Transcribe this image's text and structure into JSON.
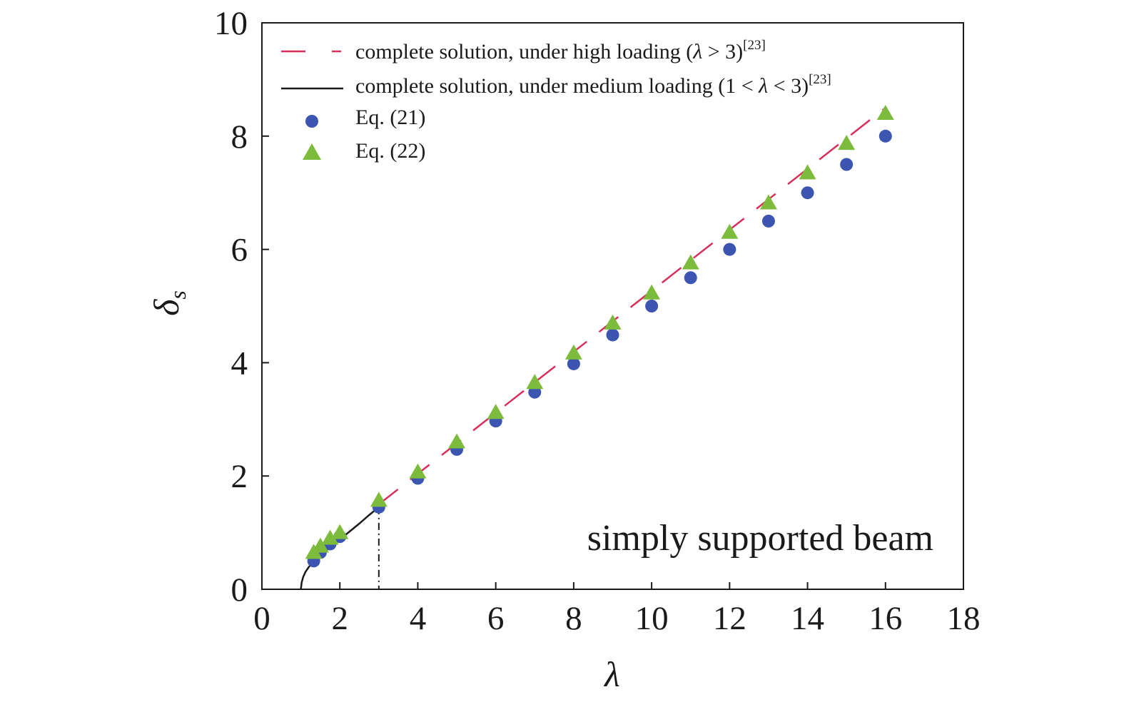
{
  "chart_data": {
    "type": "line",
    "xlabel": "λ",
    "ylabel_main": "δ",
    "ylabel_sub": "s",
    "xlim": [
      0,
      18
    ],
    "ylim": [
      0,
      10
    ],
    "xticks": [
      0,
      2,
      4,
      6,
      8,
      10,
      12,
      14,
      16,
      18
    ],
    "yticks": [
      0,
      2,
      4,
      6,
      8,
      10
    ],
    "grid": false,
    "legend_position": "top-left",
    "annotation": "simply supported beam",
    "colors": {
      "high": "#d62f5b",
      "medium": "#1a1a1a",
      "eq21": "#3b55b0",
      "eq22": "#7dbb3c"
    },
    "series": [
      {
        "key": "high",
        "style": "dashed-line",
        "legend_parts": [
          "complete solution, under high loading (",
          "λ",
          " > 3)",
          "[23]"
        ],
        "x": [
          3,
          16
        ],
        "y": [
          1.5,
          8.5
        ]
      },
      {
        "key": "medium",
        "style": "solid-line",
        "legend_parts": [
          "complete solution, under medium loading (1 < ",
          "λ",
          " < 3)",
          "[23]"
        ],
        "x": [
          1.0,
          1.02,
          1.06,
          1.12,
          1.2,
          1.3,
          1.45,
          1.6,
          1.8,
          2.0,
          2.25,
          2.5,
          2.75,
          3.0
        ],
        "y": [
          0.0,
          0.12,
          0.22,
          0.31,
          0.39,
          0.47,
          0.57,
          0.66,
          0.77,
          0.88,
          1.02,
          1.16,
          1.31,
          1.45
        ]
      },
      {
        "key": "eq21",
        "style": "circle",
        "name": "Eq. (21)",
        "x": [
          1.33,
          1.5,
          1.75,
          2.0,
          3,
          4,
          5,
          6,
          7,
          8,
          9,
          10,
          11,
          12,
          13,
          14,
          15,
          16
        ],
        "y": [
          0.5,
          0.65,
          0.8,
          0.93,
          1.45,
          1.96,
          2.47,
          2.97,
          3.48,
          3.98,
          4.49,
          5.0,
          5.5,
          6.0,
          6.5,
          7.0,
          7.5,
          8.0
        ]
      },
      {
        "key": "eq22",
        "style": "triangle",
        "name": "Eq. (22)",
        "x": [
          1.33,
          1.5,
          1.75,
          2.0,
          3,
          4,
          5,
          6,
          7,
          8,
          9,
          10,
          11,
          12,
          13,
          14,
          15,
          16
        ],
        "y": [
          0.65,
          0.76,
          0.9,
          1.0,
          1.57,
          2.07,
          2.6,
          3.12,
          3.65,
          4.17,
          4.7,
          5.23,
          5.76,
          6.3,
          6.82,
          7.35,
          7.87,
          8.4
        ]
      }
    ],
    "vertical_marker": {
      "x": 3,
      "y": 1.45,
      "style": "dash-dot"
    }
  }
}
